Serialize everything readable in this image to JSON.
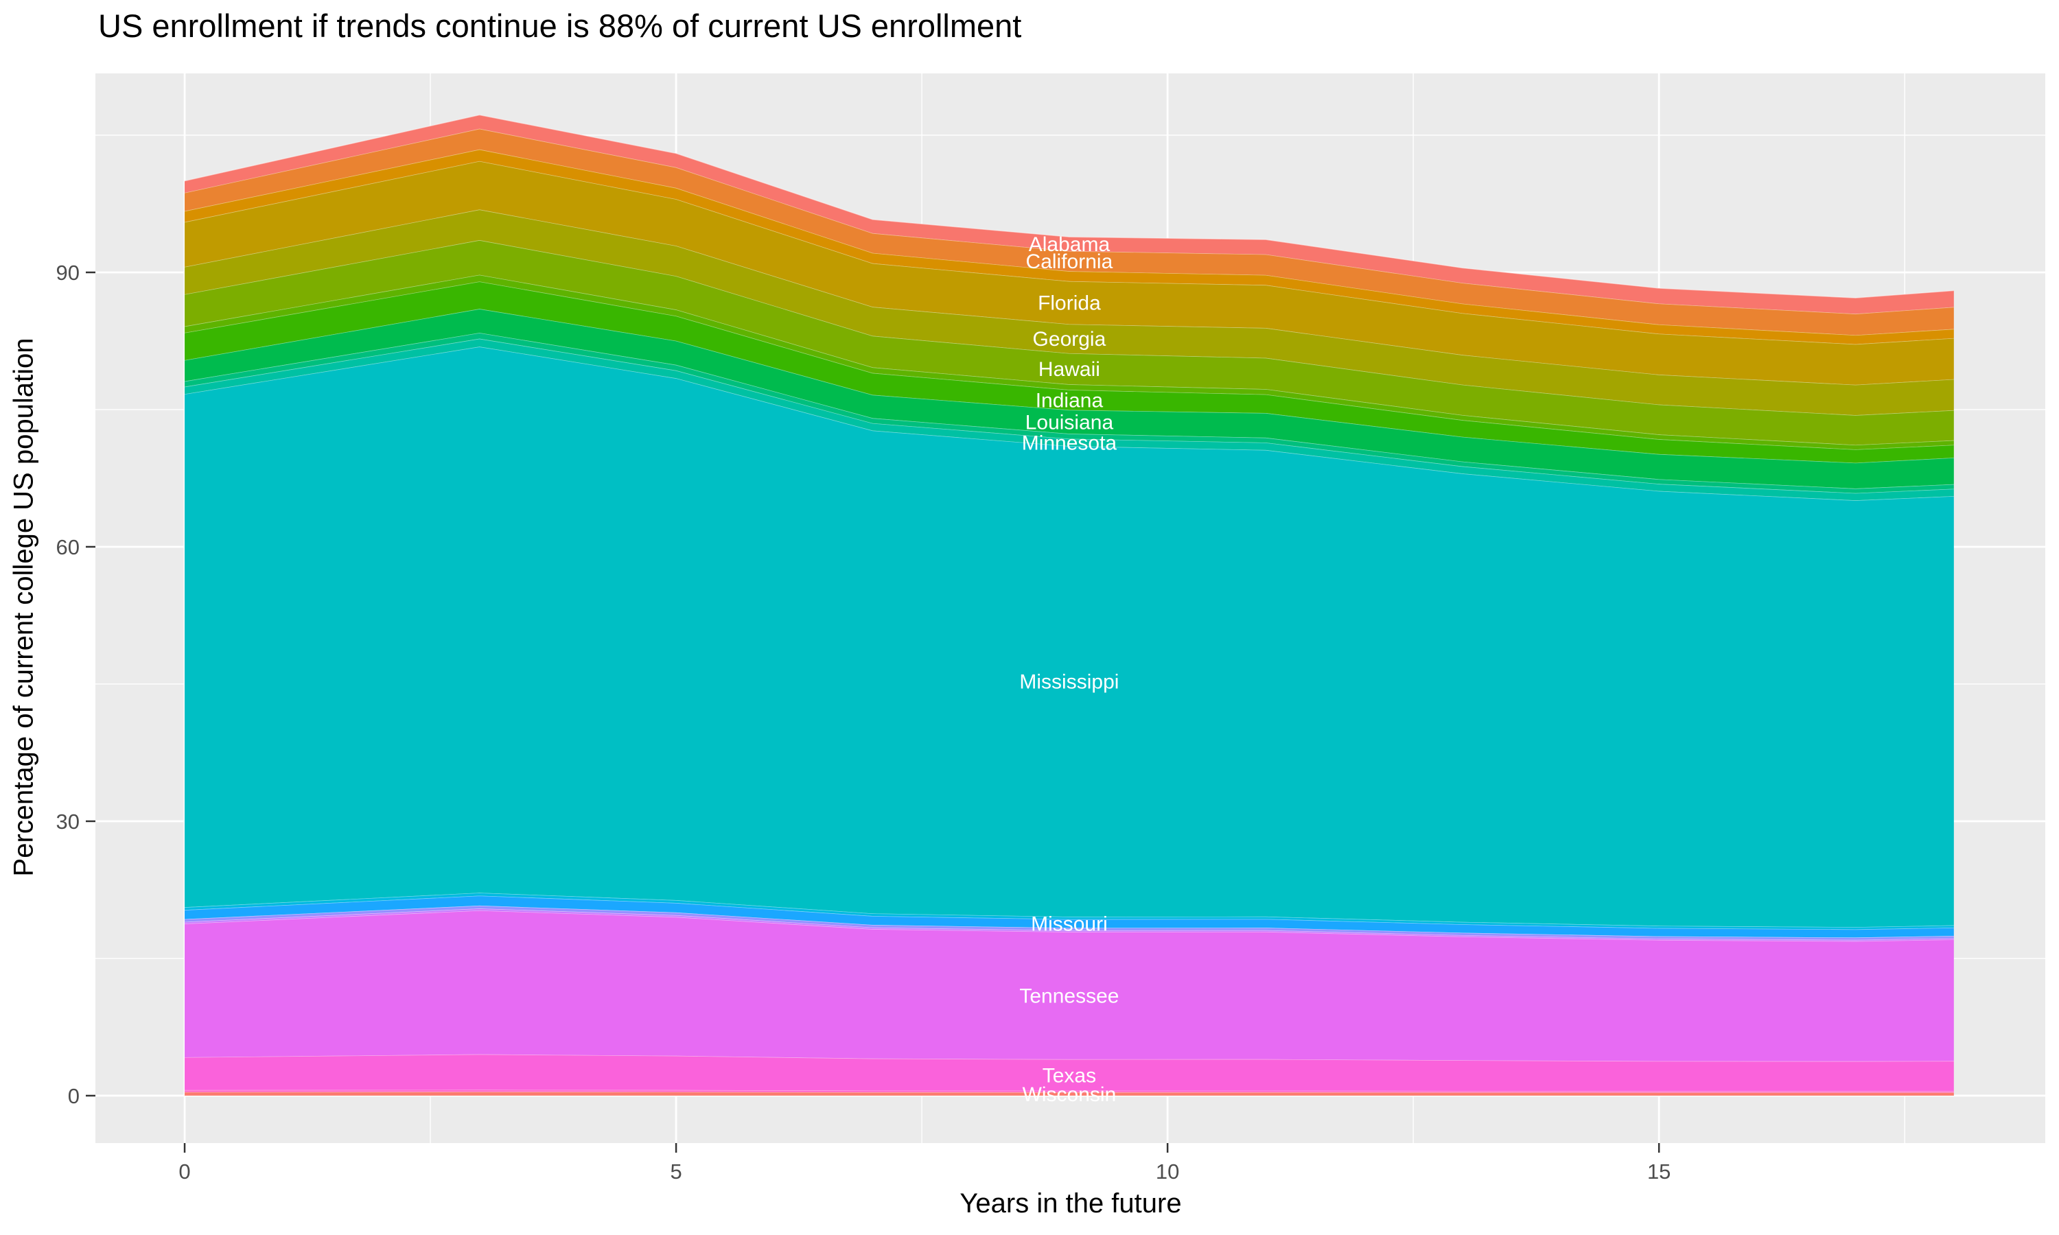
{
  "title": "US enrollment if trends continue is 88% of current US enrollment",
  "chart_data": {
    "type": "area",
    "stacked": true,
    "title": "US enrollment if trends continue is 88% of current US enrollment",
    "xlabel": "Years in the future",
    "ylabel": "Percentage of current college US population",
    "legend": "none (bands labeled in-plot, white text at x=9)",
    "grid": "on",
    "panel_bg": "#EBEBEB",
    "grid_color": "#FFFFFF",
    "tick_label_color": "#4D4D4D",
    "band_label_color": "#FFFFFF",
    "xlim": [
      -0.908,
      18.93
    ],
    "ylim": [
      -5.18,
      111.75
    ],
    "x_ticks": [
      0,
      5,
      10,
      15
    ],
    "y_ticks": [
      0,
      30,
      60,
      90
    ],
    "x_minor_ticks": [
      2.5,
      7.5,
      12.5,
      17.5
    ],
    "y_minor_ticks": [
      15,
      45,
      75,
      105
    ],
    "label_x": 9,
    "x": [
      0,
      3,
      5,
      7,
      9,
      11,
      13,
      15,
      17,
      18
    ],
    "totals": [
      100.0,
      107.2,
      103.0,
      95.8,
      93.9,
      93.6,
      90.5,
      88.3,
      87.2,
      88.0
    ],
    "series": [
      {
        "label": "Wisconsin",
        "color": "#FB7B6E",
        "values": [
          0.4,
          0.43,
          0.41,
          0.38,
          0.37,
          0.37,
          0.36,
          0.35,
          0.35,
          0.35
        ]
      },
      {
        "label": "",
        "color": "#FF61C9",
        "values": [
          0.2,
          0.21,
          0.2,
          0.18,
          0.17,
          0.17,
          0.16,
          0.15,
          0.15,
          0.15
        ]
      },
      {
        "label": "Texas",
        "color": "#FA62DB",
        "values": [
          3.6,
          3.88,
          3.75,
          3.5,
          3.44,
          3.45,
          3.35,
          3.28,
          3.26,
          3.29
        ]
      },
      {
        "label": "Tennessee",
        "color": "#E76BF3",
        "values": [
          14.6,
          15.73,
          15.17,
          14.15,
          13.92,
          13.93,
          13.52,
          13.24,
          13.13,
          13.28
        ]
      },
      {
        "label": "",
        "color": "#C77CFF",
        "values": [
          0.2,
          0.21,
          0.2,
          0.18,
          0.17,
          0.17,
          0.16,
          0.15,
          0.15,
          0.15
        ]
      },
      {
        "label": "",
        "color": "#9590FF",
        "values": [
          0.3,
          0.32,
          0.3,
          0.28,
          0.27,
          0.27,
          0.26,
          0.25,
          0.25,
          0.25
        ]
      },
      {
        "label": "Missouri",
        "color": "#1BA7FF",
        "values": [
          1.0,
          1.08,
          1.04,
          0.97,
          0.95,
          0.95,
          0.92,
          0.9,
          0.89,
          0.9
        ]
      },
      {
        "label": "",
        "color": "#00BAE0",
        "values": [
          0.3,
          0.32,
          0.3,
          0.28,
          0.27,
          0.27,
          0.26,
          0.25,
          0.25,
          0.25
        ]
      },
      {
        "label": "Mississippi",
        "color": "#00BFC4",
        "values": [
          56.1,
          59.7,
          57.06,
          52.79,
          51.45,
          51.0,
          49.02,
          47.53,
          46.65,
          46.92
        ]
      },
      {
        "label": "Minnesota",
        "color": "#00C1A3",
        "values": [
          0.8,
          0.87,
          0.85,
          0.8,
          0.8,
          0.81,
          0.79,
          0.78,
          0.79,
          0.8
        ]
      },
      {
        "label": "",
        "color": "#00BF7D",
        "values": [
          0.6,
          0.64,
          0.61,
          0.56,
          0.55,
          0.54,
          0.52,
          0.51,
          0.5,
          0.5
        ]
      },
      {
        "label": "Louisiana",
        "color": "#00BB4E",
        "values": [
          2.3,
          2.62,
          2.63,
          2.54,
          2.6,
          2.69,
          2.7,
          2.74,
          2.81,
          2.9
        ]
      },
      {
        "label": "Indiana",
        "color": "#39B600",
        "values": [
          3.0,
          2.99,
          2.72,
          2.39,
          2.2,
          2.04,
          1.83,
          1.63,
          1.46,
          1.4
        ]
      },
      {
        "label": "",
        "color": "#5EB300",
        "values": [
          0.7,
          0.73,
          0.69,
          0.62,
          0.6,
          0.58,
          0.55,
          0.52,
          0.5,
          0.5
        ]
      },
      {
        "label": "Hawaii",
        "color": "#7CAE00",
        "values": [
          3.5,
          3.79,
          3.67,
          3.44,
          3.39,
          3.41,
          3.32,
          3.27,
          3.25,
          3.29
        ]
      },
      {
        "label": "Georgia",
        "color": "#A3A500",
        "values": [
          3.0,
          3.35,
          3.31,
          3.17,
          3.19,
          3.27,
          3.26,
          3.27,
          3.32,
          3.39
        ]
      },
      {
        "label": "Florida",
        "color": "#C09B00",
        "values": [
          4.9,
          5.29,
          5.1,
          4.76,
          4.69,
          4.7,
          4.56,
          4.47,
          4.44,
          4.49
        ]
      },
      {
        "label": "",
        "color": "#D89000",
        "values": [
          1.2,
          1.28,
          1.22,
          1.13,
          1.1,
          1.09,
          1.04,
          1.01,
          0.99,
          1.0
        ]
      },
      {
        "label": "California",
        "color": "#EA8331",
        "values": [
          2.0,
          2.26,
          2.25,
          2.16,
          2.2,
          2.26,
          2.27,
          2.29,
          2.33,
          2.4
        ]
      },
      {
        "label": "Alabama",
        "color": "#F8766D",
        "values": [
          1.3,
          1.51,
          1.53,
          1.5,
          1.55,
          1.62,
          1.64,
          1.68,
          1.74,
          1.8
        ]
      }
    ]
  }
}
